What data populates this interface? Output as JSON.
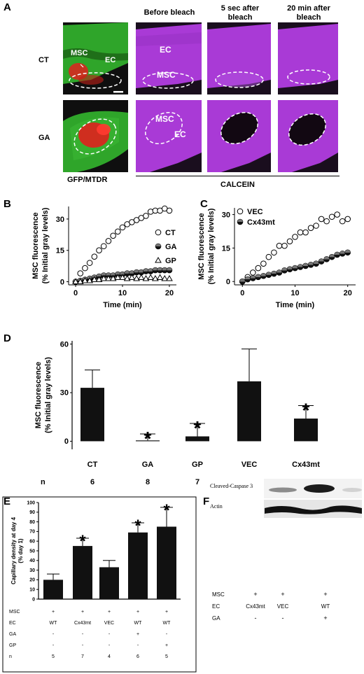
{
  "panel_letters": {
    "a": "A",
    "b": "B",
    "c": "C",
    "d": "D",
    "e": "E",
    "f": "F"
  },
  "panel_a": {
    "column_headers": [
      "Before bleach",
      "5 sec after bleach",
      "20 min after bleach"
    ],
    "row_labels": [
      "CT",
      "GA"
    ],
    "left_caption": "GFP/MTDR",
    "right_caption": "CALCEIN",
    "labels": {
      "msc": "MSC",
      "ec": "EC"
    },
    "colors": {
      "green": "#2fa52a",
      "red": "#e0201e",
      "magenta": "#a93ad6",
      "dark": "#1a0e1e"
    }
  },
  "chart_data": [
    {
      "id": "B",
      "type": "scatter",
      "xlabel": "Time (min)",
      "ylabel": [
        "MSC fluorescence",
        "(% Initial gray levels)"
      ],
      "xlim": [
        -1.5,
        21.5
      ],
      "ylim": [
        -1.5,
        36
      ],
      "xticks": [
        0,
        10,
        20
      ],
      "yticks": [
        0,
        15,
        30
      ],
      "x": [
        0,
        1,
        2,
        3,
        4,
        5,
        6,
        7,
        8,
        9,
        10,
        11,
        12,
        13,
        14,
        15,
        16,
        17,
        18,
        19,
        20
      ],
      "series": [
        {
          "name": "CT",
          "marker": "open-circle",
          "values": [
            0,
            4,
            6.5,
            9,
            12,
            15,
            17,
            19.5,
            22,
            24,
            26,
            27.5,
            28.5,
            29.5,
            30.5,
            31.5,
            33.5,
            34,
            34,
            35,
            34
          ]
        },
        {
          "name": "GA",
          "marker": "half-circle",
          "values": [
            0,
            0.5,
            1,
            1.5,
            2,
            2.5,
            3,
            3,
            3,
            3.5,
            3.5,
            4,
            4,
            4.5,
            4.5,
            5,
            5,
            5.5,
            5.5,
            5.5,
            5.5
          ]
        },
        {
          "name": "GP",
          "marker": "triangle",
          "values": [
            0,
            0,
            0.5,
            0.5,
            1,
            1,
            1.5,
            1.5,
            1.5,
            2,
            2,
            1.5,
            2,
            1.5,
            2,
            1.5,
            2,
            1.5,
            2,
            1.5,
            1.5
          ]
        }
      ],
      "legend": "right"
    },
    {
      "id": "C",
      "type": "scatter",
      "xlabel": "Time (min)",
      "ylabel": [
        "MSC fluorescence",
        "(% Initial gray levels)"
      ],
      "xlim": [
        -1.5,
        21.5
      ],
      "ylim": [
        -1.5,
        33
      ],
      "xticks": [
        0,
        10,
        20
      ],
      "yticks": [
        0,
        15,
        30
      ],
      "x": [
        0,
        1,
        2,
        3,
        4,
        5,
        6,
        7,
        8,
        9,
        10,
        11,
        12,
        13,
        14,
        15,
        16,
        17,
        18,
        19,
        20
      ],
      "series": [
        {
          "name": "VEC",
          "marker": "open-circle",
          "values": [
            0,
            2,
            4,
            6,
            8,
            11,
            13,
            16,
            16,
            18,
            20,
            22,
            22,
            24,
            25,
            28,
            27,
            29,
            30,
            27,
            28
          ]
        },
        {
          "name": "Cx43mt",
          "marker": "half-circle",
          "values": [
            0,
            1,
            1.5,
            2,
            2.5,
            3,
            3.5,
            4,
            5,
            5.5,
            6,
            6.5,
            7,
            7.5,
            8,
            9,
            10,
            11,
            12,
            12.5,
            13
          ]
        }
      ],
      "legend": "top-left"
    },
    {
      "id": "D",
      "type": "bar",
      "ylabel": [
        "MSC fluorescence",
        "(% Initial gray levels)"
      ],
      "categories": [
        "CT",
        "GA",
        "GP",
        "VEC",
        "Cx43mt"
      ],
      "values": [
        33,
        0.5,
        3,
        37,
        14
      ],
      "errors": [
        11,
        4,
        8,
        20,
        8
      ],
      "significant": [
        false,
        true,
        true,
        false,
        true
      ],
      "n_label": "n",
      "n": [
        "6",
        "8",
        "7",
        "5",
        "6"
      ],
      "ylim": [
        -5,
        62
      ],
      "yticks": [
        0,
        30,
        60
      ]
    },
    {
      "id": "E",
      "type": "bar",
      "ylabel": [
        "Capillary density at day 4",
        "(% day 1)"
      ],
      "categories": [
        "1",
        "2",
        "3",
        "4",
        "5"
      ],
      "values": [
        20,
        55,
        33,
        69,
        75
      ],
      "errors": [
        6,
        8,
        7,
        10,
        20
      ],
      "significant": [
        false,
        true,
        false,
        true,
        true
      ],
      "ylim": [
        0,
        100
      ],
      "yticks": [
        0,
        10,
        20,
        30,
        40,
        50,
        60,
        70,
        80,
        90,
        100
      ],
      "table": {
        "rows": [
          {
            "label": "MSC",
            "values": [
              "+",
              "+",
              "+",
              "+",
              "+"
            ]
          },
          {
            "label": "EC",
            "values": [
              "WT",
              "Cx43mt",
              "VEC",
              "WT",
              "WT"
            ]
          },
          {
            "label": "GA",
            "values": [
              "-",
              "-",
              "-",
              "+",
              "-"
            ]
          },
          {
            "label": "GP",
            "values": [
              "-",
              "-",
              "-",
              "-",
              "+"
            ]
          },
          {
            "label": "n",
            "values": [
              "5",
              "7",
              "4",
              "6",
              "5"
            ]
          }
        ]
      }
    }
  ],
  "panel_f": {
    "bands": [
      "Cleaved-Caspase 3",
      "Actin"
    ],
    "rows": [
      {
        "label": "MSC",
        "values": [
          "+",
          "+",
          "+"
        ]
      },
      {
        "label": "EC",
        "values": [
          "Cx43mt",
          "VEC",
          "WT"
        ]
      },
      {
        "label": "GA",
        "values": [
          "-",
          "-",
          "+"
        ]
      }
    ]
  },
  "star": "*"
}
